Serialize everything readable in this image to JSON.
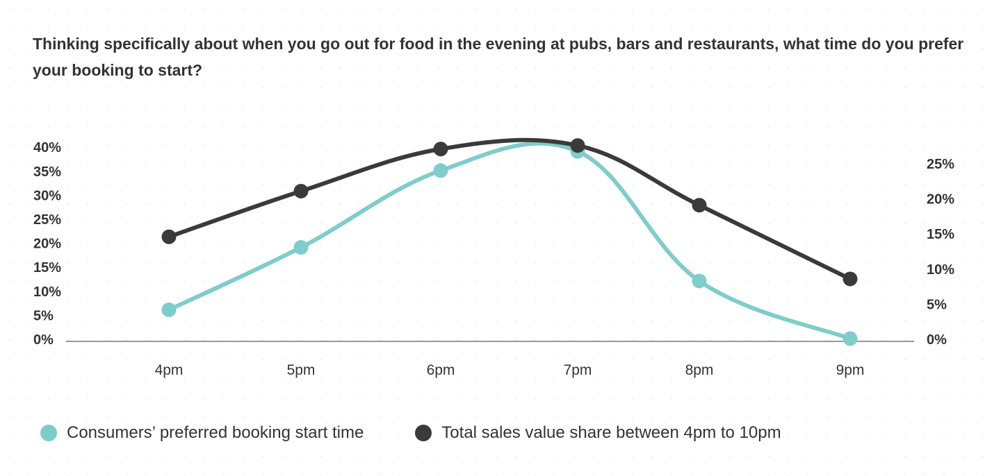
{
  "title": "Thinking specifically about when you go out for food in the evening at pubs, bars and restaurants, what time do you prefer your booking to start?",
  "colors": {
    "consumers": "#7ecdca",
    "sales": "#3a3a3a",
    "axis": "#777777",
    "text": "#333333"
  },
  "legend": [
    {
      "label": "Consumers’ preferred booking start time",
      "color": "#7ecdca"
    },
    {
      "label": "Total sales value share between 4pm to 10pm",
      "color": "#3a3a3a"
    }
  ],
  "chart_data": {
    "type": "line",
    "categories": [
      "4pm",
      "5pm",
      "6pm",
      "7pm",
      "8pm",
      "9pm"
    ],
    "left_axis": {
      "ticks": [
        "0%",
        "5%",
        "10%",
        "15%",
        "20%",
        "25%",
        "30%",
        "35%",
        "40%"
      ],
      "ylim": [
        0,
        40
      ]
    },
    "right_axis": {
      "ticks": [
        "0%",
        "5%",
        "10%",
        "15%",
        "20%",
        "25%"
      ],
      "ylim": [
        0,
        25
      ]
    },
    "series": [
      {
        "name": "Consumers’ preferred booking start time",
        "axis": "left",
        "values": [
          6,
          19,
          35,
          39,
          12,
          0
        ]
      },
      {
        "name": "Total sales value share between 4pm to 10pm",
        "axis": "right",
        "values": [
          14.5,
          21,
          27,
          27.5,
          19,
          8.5
        ]
      }
    ],
    "grid": false,
    "legend_position": "bottom-left"
  }
}
